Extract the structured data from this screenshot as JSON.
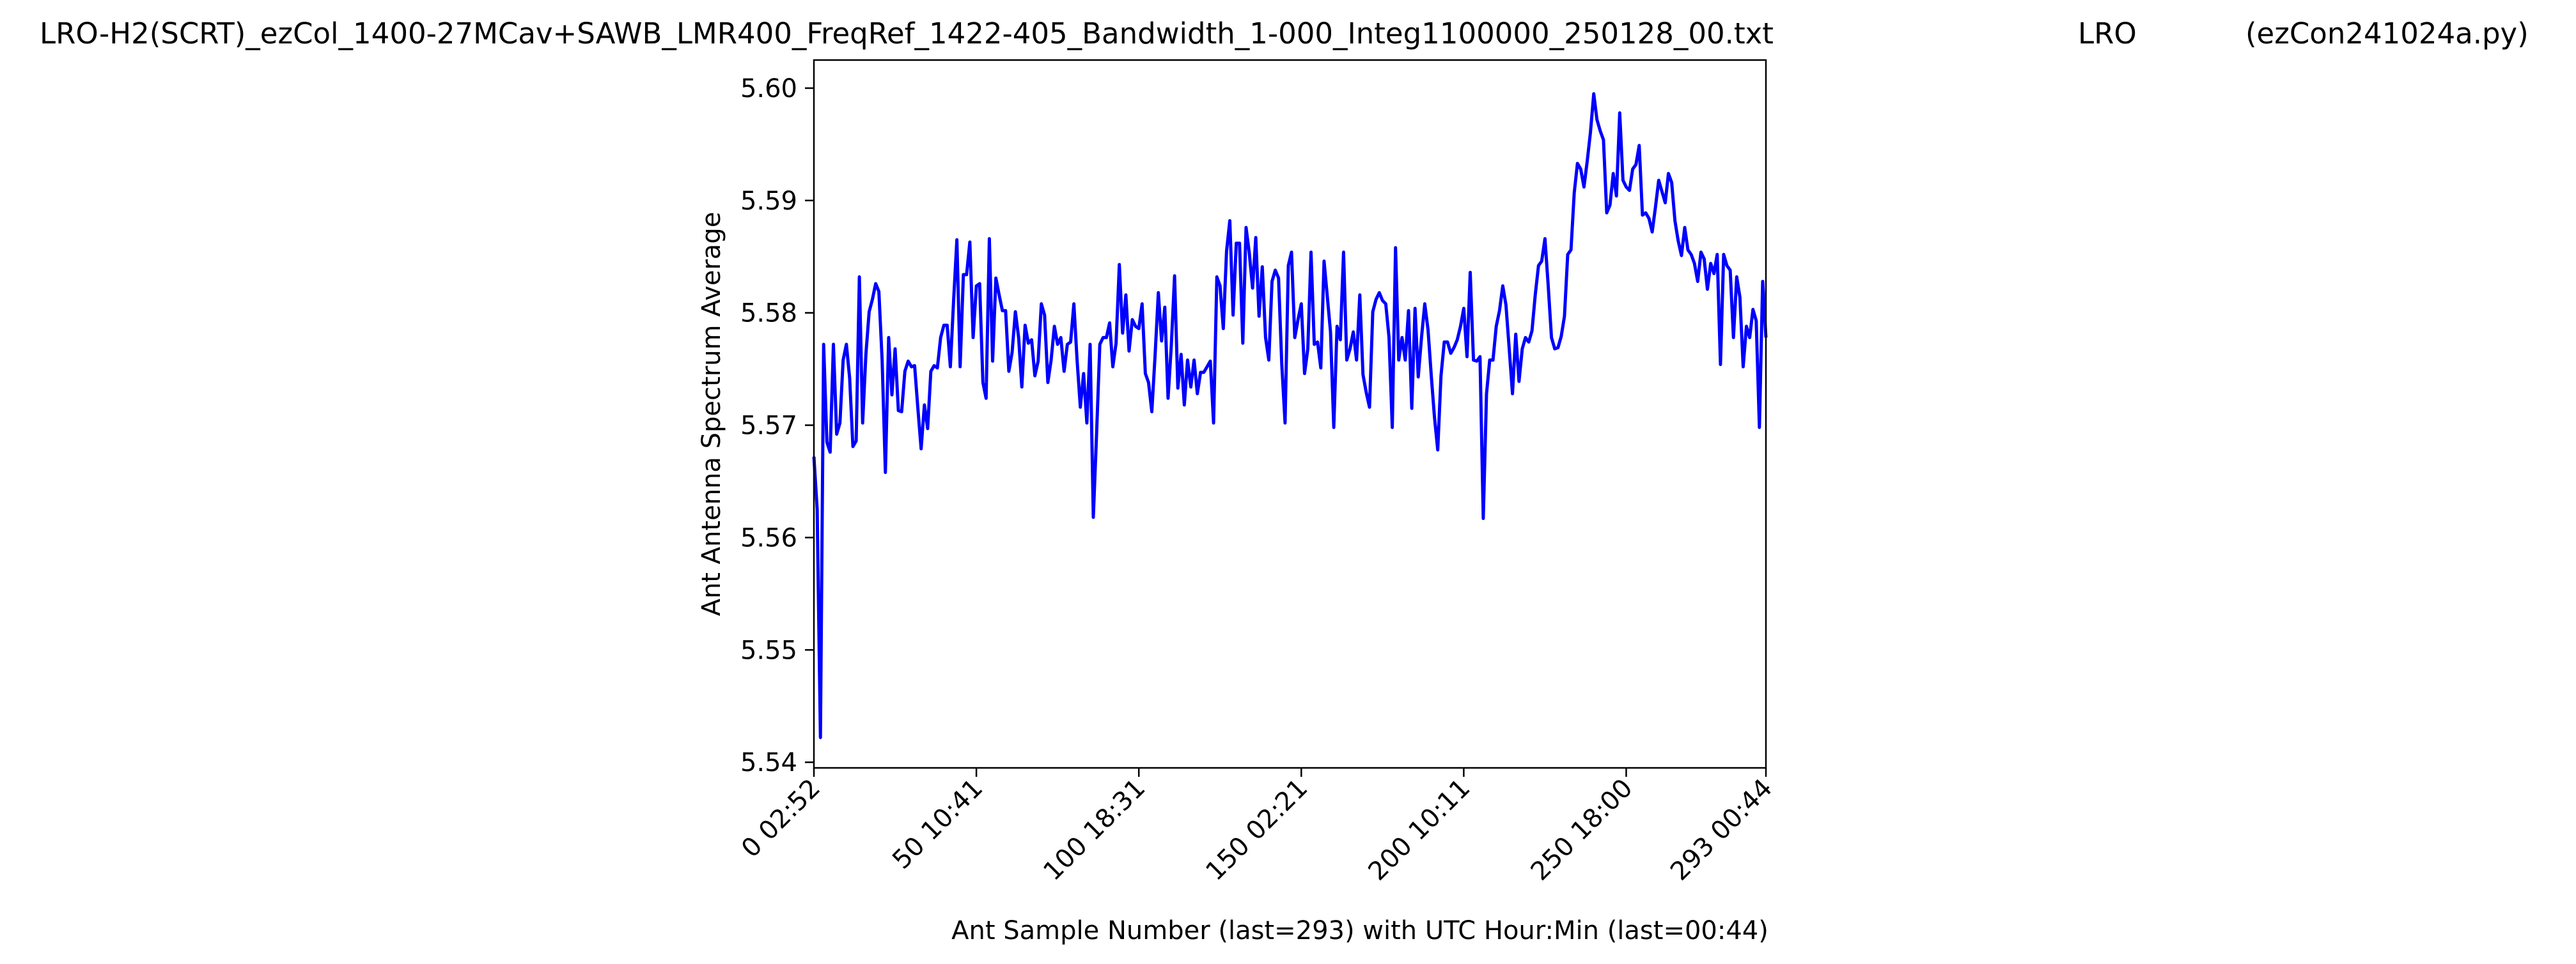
{
  "title": {
    "left": "LRO-H2(SCRT)_ezCol_1400-27MCav+SAWB_LMR400_FreqRef_1422-405_Bandwidth_1-000_Integ1100000_250128_00.txt",
    "center": "LRO",
    "right": "(ezCon241024a.py)"
  },
  "chart_data": {
    "type": "line",
    "xlabel": "Ant Sample Number (last=293) with UTC Hour:Min (last=00:44)",
    "ylabel": "Ant Antenna Spectrum Average",
    "xlim": [
      0,
      293
    ],
    "ylim": [
      5.5395,
      5.6025
    ],
    "x_ticks": [
      {
        "value": 0,
        "label": "0  02:52"
      },
      {
        "value": 50,
        "label": "50  10:41"
      },
      {
        "value": 100,
        "label": "100  18:31"
      },
      {
        "value": 150,
        "label": "150  02:21"
      },
      {
        "value": 200,
        "label": "200  10:11"
      },
      {
        "value": 250,
        "label": "250  18:00"
      },
      {
        "value": 293,
        "label": "293  00:44"
      }
    ],
    "y_ticks": [
      {
        "value": 5.54,
        "label": "5.54"
      },
      {
        "value": 5.55,
        "label": "5.55"
      },
      {
        "value": 5.56,
        "label": "5.56"
      },
      {
        "value": 5.57,
        "label": "5.57"
      },
      {
        "value": 5.58,
        "label": "5.58"
      },
      {
        "value": 5.59,
        "label": "5.59"
      },
      {
        "value": 5.6,
        "label": "5.60"
      }
    ],
    "grid": false,
    "series": [
      {
        "color": "#0000ff",
        "x": [
          0,
          1,
          2,
          3,
          4,
          5,
          6,
          7,
          8,
          9,
          10,
          11,
          12,
          13,
          14,
          15,
          16,
          17,
          18,
          19,
          20,
          21,
          22,
          23,
          24,
          25,
          26,
          27,
          28,
          29,
          30,
          31,
          32,
          33,
          34,
          35,
          36,
          37,
          38,
          39,
          40,
          41,
          42,
          43,
          44,
          45,
          46,
          47,
          48,
          49,
          50,
          51,
          52,
          53,
          54,
          55,
          56,
          57,
          58,
          59,
          60,
          61,
          62,
          63,
          64,
          65,
          66,
          67,
          68,
          69,
          70,
          71,
          72,
          73,
          74,
          75,
          76,
          77,
          78,
          79,
          80,
          81,
          82,
          83,
          84,
          85,
          86,
          87,
          88,
          89,
          90,
          91,
          92,
          93,
          94,
          95,
          96,
          97,
          98,
          99,
          100,
          101,
          102,
          103,
          104,
          105,
          106,
          107,
          108,
          109,
          110,
          111,
          112,
          113,
          114,
          115,
          116,
          117,
          118,
          119,
          120,
          121,
          122,
          123,
          124,
          125,
          126,
          127,
          128,
          129,
          130,
          131,
          132,
          133,
          134,
          135,
          136,
          137,
          138,
          139,
          140,
          141,
          142,
          143,
          144,
          145,
          146,
          147,
          148,
          149,
          150,
          151,
          152,
          153,
          154,
          155,
          156,
          157,
          158,
          159,
          160,
          161,
          162,
          163,
          164,
          165,
          166,
          167,
          168,
          169,
          170,
          171,
          172,
          173,
          174,
          175,
          176,
          177,
          178,
          179,
          180,
          181,
          182,
          183,
          184,
          185,
          186,
          187,
          188,
          189,
          190,
          191,
          192,
          193,
          194,
          195,
          196,
          197,
          198,
          199,
          200,
          201,
          202,
          203,
          204,
          205,
          206,
          207,
          208,
          209,
          210,
          211,
          212,
          213,
          214,
          215,
          216,
          217,
          218,
          219,
          220,
          221,
          222,
          223,
          224,
          225,
          226,
          227,
          228,
          229,
          230,
          231,
          232,
          233,
          234,
          235,
          236,
          237,
          238,
          239,
          240,
          241,
          242,
          243,
          244,
          245,
          246,
          247,
          248,
          249,
          250,
          251,
          252,
          253,
          254,
          255,
          256,
          257,
          258,
          259,
          260,
          261,
          262,
          263,
          264,
          265,
          266,
          267,
          268,
          269,
          270,
          271,
          272,
          273,
          274,
          275,
          276,
          277,
          278,
          279,
          280,
          281,
          282,
          283,
          284,
          285,
          286,
          287,
          288,
          289,
          290,
          291,
          292,
          293
        ],
        "y": [
          5.5672,
          5.5625,
          5.5422,
          5.5772,
          5.5685,
          5.5676,
          5.5772,
          5.5692,
          5.5702,
          5.5758,
          5.5772,
          5.5742,
          5.5681,
          5.5686,
          5.5832,
          5.5702,
          5.5763,
          5.5801,
          5.5812,
          5.5826,
          5.5819,
          5.5758,
          5.5658,
          5.5778,
          5.5727,
          5.5768,
          5.5713,
          5.5712,
          5.5748,
          5.5757,
          5.5752,
          5.5753,
          5.5715,
          5.5679,
          5.5718,
          5.5697,
          5.5748,
          5.5753,
          5.5751,
          5.5778,
          5.5789,
          5.5789,
          5.5752,
          5.5811,
          5.5865,
          5.5752,
          5.5834,
          5.5834,
          5.5863,
          5.5778,
          5.5824,
          5.5826,
          5.5738,
          5.5724,
          5.5866,
          5.5757,
          5.5831,
          5.5816,
          5.5802,
          5.5802,
          5.5748,
          5.5765,
          5.5801,
          5.5778,
          5.5734,
          5.5789,
          5.5773,
          5.5776,
          5.5744,
          5.5757,
          5.5808,
          5.5798,
          5.5738,
          5.5758,
          5.5788,
          5.5772,
          5.5778,
          5.5748,
          5.5772,
          5.5774,
          5.5808,
          5.5758,
          5.5716,
          5.5746,
          5.5702,
          5.5772,
          5.5618,
          5.5692,
          5.5772,
          5.5778,
          5.5778,
          5.5791,
          5.5752,
          5.5773,
          5.5843,
          5.5782,
          5.5816,
          5.5766,
          5.5794,
          5.5788,
          5.5786,
          5.5808,
          5.5746,
          5.5738,
          5.5712,
          5.5762,
          5.5818,
          5.5775,
          5.5805,
          5.5724,
          5.5771,
          5.5833,
          5.5733,
          5.5763,
          5.5718,
          5.5758,
          5.5734,
          5.5758,
          5.5728,
          5.5747,
          5.5747,
          5.5752,
          5.5757,
          5.5702,
          5.5832,
          5.5824,
          5.5786,
          5.5855,
          5.5882,
          5.5798,
          5.5862,
          5.5862,
          5.5773,
          5.5876,
          5.5853,
          5.5822,
          5.5867,
          5.5797,
          5.5841,
          5.5778,
          5.5758,
          5.5828,
          5.5838,
          5.5831,
          5.5754,
          5.5702,
          5.5842,
          5.5854,
          5.5778,
          5.5794,
          5.5808,
          5.5746,
          5.5768,
          5.5854,
          5.5772,
          5.5774,
          5.5751,
          5.5846,
          5.5815,
          5.5783,
          5.5698,
          5.5788,
          5.5776,
          5.5854,
          5.5758,
          5.5768,
          5.5783,
          5.5758,
          5.5816,
          5.5745,
          5.5729,
          5.5716,
          5.5801,
          5.5812,
          5.5818,
          5.5811,
          5.5808,
          5.5778,
          5.5698,
          5.5858,
          5.5758,
          5.5778,
          5.5758,
          5.5802,
          5.5715,
          5.5804,
          5.5743,
          5.5778,
          5.5808,
          5.5785,
          5.5744,
          5.5707,
          5.5678,
          5.5744,
          5.5774,
          5.5774,
          5.5764,
          5.5769,
          5.5776,
          5.5788,
          5.5804,
          5.5761,
          5.5836,
          5.5758,
          5.5757,
          5.5761,
          5.5617,
          5.5728,
          5.5758,
          5.5758,
          5.5788,
          5.5802,
          5.5824,
          5.5807,
          5.5768,
          5.5728,
          5.5781,
          5.5739,
          5.5768,
          5.5778,
          5.5774,
          5.5784,
          5.5816,
          5.5842,
          5.5846,
          5.5866,
          5.5824,
          5.5778,
          5.5768,
          5.5769,
          5.5779,
          5.5797,
          5.5852,
          5.5856,
          5.5907,
          5.5933,
          5.5928,
          5.5912,
          5.5935,
          5.5961,
          5.5995,
          5.5972,
          5.5962,
          5.5954,
          5.5889,
          5.5896,
          5.5924,
          5.5904,
          5.5978,
          5.5918,
          5.5912,
          5.5909,
          5.5928,
          5.5932,
          5.5949,
          5.5887,
          5.5889,
          5.5884,
          5.5872,
          5.5894,
          5.5918,
          5.5908,
          5.5898,
          5.5924,
          5.5916,
          5.5882,
          5.5864,
          5.5851,
          5.5876,
          5.5856,
          5.5852,
          5.5844,
          5.5828,
          5.5854,
          5.5848,
          5.5821,
          5.5844,
          5.5835,
          5.5852,
          5.5754,
          5.5852,
          5.5842,
          5.5838,
          5.5778,
          5.5832,
          5.5814,
          5.5752,
          5.5788,
          5.5778,
          5.5803,
          5.5793,
          5.5698,
          5.5828,
          5.5778
        ]
      }
    ]
  }
}
